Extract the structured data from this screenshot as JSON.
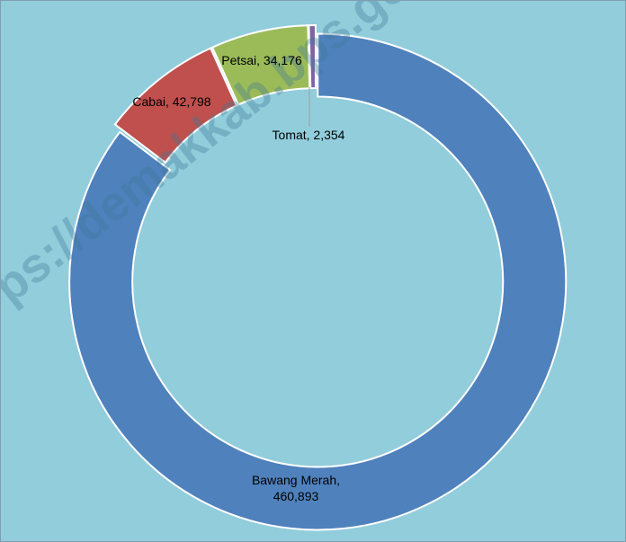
{
  "chart_data": {
    "type": "donut",
    "categories": [
      "Bawang Merah",
      "Cabai",
      "Petsai",
      "Tomat"
    ],
    "values": [
      460893,
      42798,
      34176,
      2354
    ],
    "value_labels": [
      "Bawang Merah, 460,893",
      "Cabai, 42,798",
      "Petsai, 34,176",
      "Tomat, 2,354"
    ],
    "colors": [
      "#4f81bd",
      "#c0504d",
      "#9bbb59",
      "#8064a2"
    ],
    "watermark": "ps://demakkab.bps.go.id"
  }
}
